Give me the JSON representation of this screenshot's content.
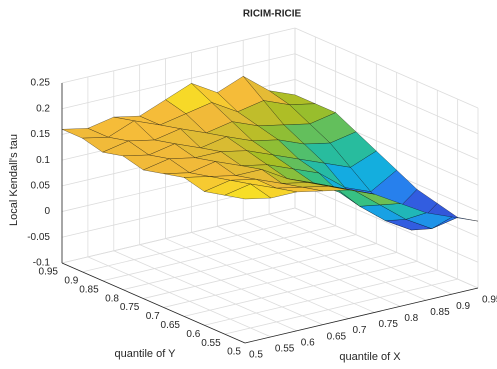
{
  "chart_data": {
    "type": "surface",
    "title": "RICIM-RICIE",
    "xlabel": "quantile of X",
    "ylabel": "quantile of Y",
    "zlabel": "Local Kendall's tau",
    "x": [
      0.5,
      0.55,
      0.6,
      0.65,
      0.7,
      0.75,
      0.8,
      0.85,
      0.9,
      0.95
    ],
    "y": [
      0.5,
      0.55,
      0.6,
      0.65,
      0.7,
      0.75,
      0.8,
      0.85,
      0.9,
      0.95
    ],
    "z": [
      [
        0.18,
        0.17,
        0.17,
        0.16,
        0.15,
        0.13,
        0.1,
        0.07,
        0.05,
        0.03
      ],
      [
        0.17,
        0.18,
        0.16,
        0.15,
        0.14,
        0.12,
        0.08,
        0.04,
        0.01,
        0.02
      ],
      [
        0.16,
        0.17,
        0.16,
        0.14,
        0.13,
        0.11,
        0.06,
        0.02,
        -0.01,
        0.03
      ],
      [
        0.17,
        0.16,
        0.15,
        0.15,
        0.12,
        0.1,
        0.07,
        0.03,
        0.0,
        0.04
      ],
      [
        0.16,
        0.15,
        0.16,
        0.14,
        0.13,
        0.11,
        0.09,
        0.05,
        0.03,
        0.06
      ],
      [
        0.15,
        0.16,
        0.15,
        0.15,
        0.14,
        0.12,
        0.1,
        0.08,
        0.06,
        0.08
      ],
      [
        0.16,
        0.15,
        0.16,
        0.14,
        0.15,
        0.13,
        0.12,
        0.1,
        0.09,
        0.1
      ],
      [
        0.15,
        0.16,
        0.15,
        0.16,
        0.14,
        0.15,
        0.13,
        0.12,
        0.11,
        0.12
      ],
      [
        0.16,
        0.15,
        0.17,
        0.15,
        0.16,
        0.17,
        0.14,
        0.15,
        0.13,
        0.12
      ],
      [
        0.16,
        0.15,
        0.16,
        0.15,
        0.17,
        0.19,
        0.16,
        0.18,
        0.14,
        0.12
      ]
    ],
    "xlim": [
      0.5,
      0.95
    ],
    "ylim": [
      0.5,
      0.95
    ],
    "zlim": [
      -0.1,
      0.25
    ],
    "xticks": [
      0.5,
      0.55,
      0.6,
      0.65,
      0.7,
      0.75,
      0.8,
      0.85,
      0.9,
      0.95
    ],
    "yticks": [
      0.5,
      0.55,
      0.6,
      0.65,
      0.7,
      0.75,
      0.8,
      0.85,
      0.9,
      0.95
    ],
    "zticks": [
      -0.1,
      -0.05,
      0,
      0.05,
      0.1,
      0.15,
      0.2,
      0.25
    ],
    "grid": true,
    "colormap": [
      "#3e26a8",
      "#2e6ff2",
      "#13aee0",
      "#2ec08b",
      "#a4be23",
      "#f5ba3a",
      "#f9fb15"
    ]
  }
}
